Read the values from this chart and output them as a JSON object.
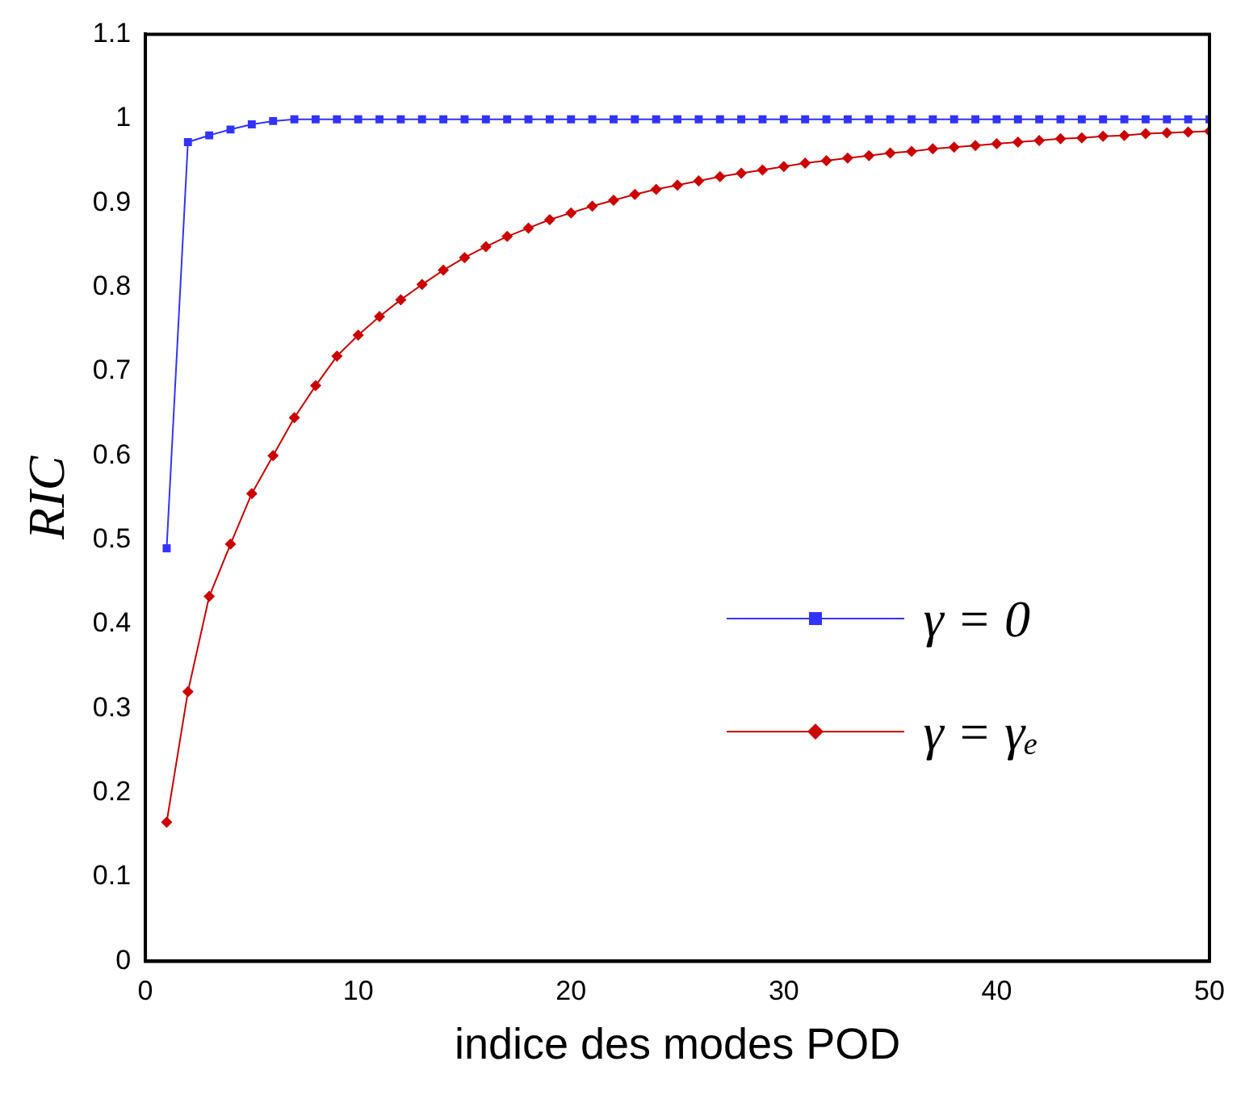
{
  "chart_data": {
    "type": "line",
    "xlabel": "indice des modes POD",
    "ylabel": "RIC",
    "x": [
      1,
      2,
      3,
      4,
      5,
      6,
      7,
      8,
      9,
      10,
      11,
      12,
      13,
      14,
      15,
      16,
      17,
      18,
      19,
      20,
      21,
      22,
      23,
      24,
      25,
      26,
      27,
      28,
      29,
      30,
      31,
      32,
      33,
      34,
      35,
      36,
      37,
      38,
      39,
      40,
      41,
      42,
      43,
      44,
      45,
      46,
      47,
      48,
      49,
      50
    ],
    "series": [
      {
        "name": "γ = 0",
        "color": "#3333ff",
        "marker": "square",
        "values": [
          0.49,
          0.972,
          0.98,
          0.987,
          0.993,
          0.997,
          0.999,
          0.999,
          0.999,
          0.999,
          0.999,
          0.999,
          0.999,
          0.999,
          0.999,
          0.999,
          0.999,
          0.999,
          0.999,
          0.999,
          0.999,
          0.999,
          0.999,
          0.999,
          0.999,
          0.999,
          0.999,
          0.999,
          0.999,
          0.999,
          0.999,
          0.999,
          0.999,
          0.999,
          0.999,
          0.999,
          0.999,
          0.999,
          0.999,
          0.999,
          0.999,
          0.999,
          0.999,
          0.999,
          0.999,
          0.999,
          0.999,
          0.999,
          0.999,
          0.999
        ]
      },
      {
        "name": "γ = γₑ",
        "color": "#cc0000",
        "marker": "diamond",
        "values": [
          0.165,
          0.32,
          0.433,
          0.495,
          0.555,
          0.6,
          0.645,
          0.683,
          0.718,
          0.743,
          0.765,
          0.785,
          0.803,
          0.82,
          0.835,
          0.848,
          0.86,
          0.87,
          0.88,
          0.888,
          0.896,
          0.903,
          0.91,
          0.916,
          0.921,
          0.926,
          0.931,
          0.935,
          0.939,
          0.943,
          0.947,
          0.95,
          0.953,
          0.956,
          0.959,
          0.961,
          0.964,
          0.966,
          0.968,
          0.97,
          0.972,
          0.974,
          0.976,
          0.977,
          0.979,
          0.98,
          0.982,
          0.983,
          0.984,
          0.985
        ]
      }
    ],
    "xlim": [
      0,
      50
    ],
    "xticks": [
      0,
      10,
      20,
      30,
      40,
      50
    ],
    "ylim": [
      0,
      1.1
    ],
    "yticks": [
      0,
      0.1,
      0.2,
      0.3,
      0.4,
      0.5,
      0.6,
      0.7,
      0.8,
      0.9,
      1,
      1.1
    ],
    "grid": false,
    "legend": "right",
    "line_style": "solid"
  }
}
